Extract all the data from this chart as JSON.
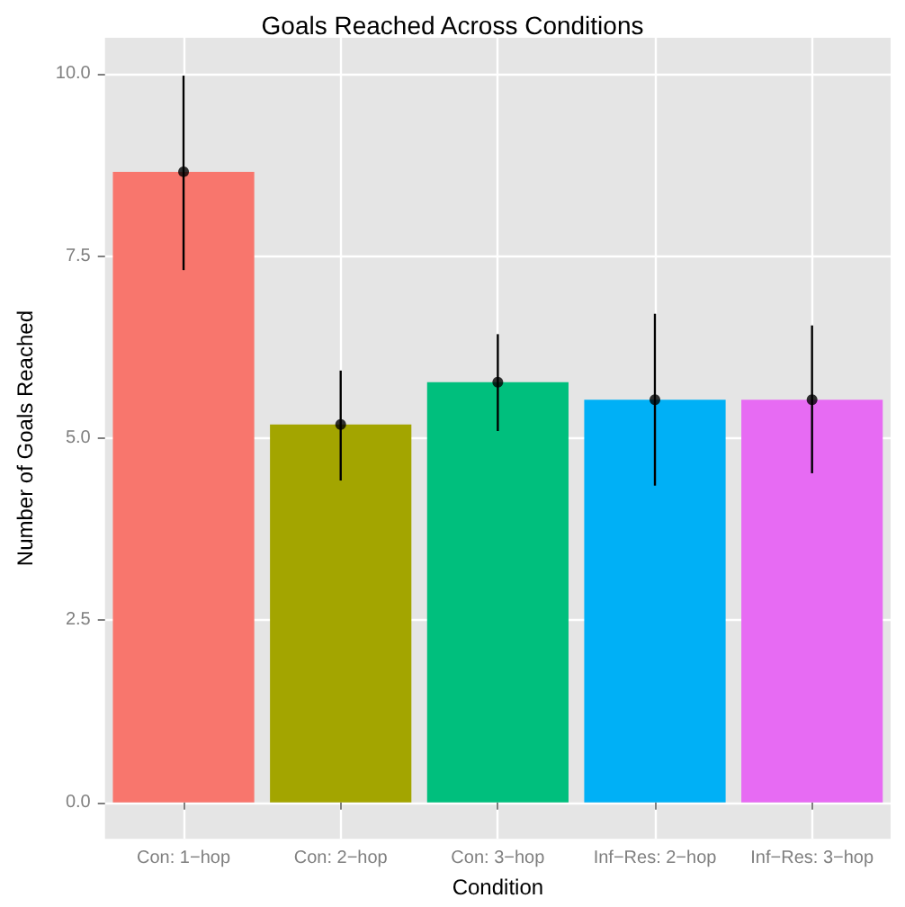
{
  "chart_data": {
    "type": "bar",
    "title": "Goals Reached Across Conditions",
    "xlabel": "Condition",
    "ylabel": "Number of Goals Reached",
    "categories": [
      "Con: 1−hop",
      "Con: 2−hop",
      "Con: 3−hop",
      "Inf−Res: 2−hop",
      "Inf−Res: 3−hop"
    ],
    "values": [
      8.66,
      5.19,
      5.77,
      5.53,
      5.53
    ],
    "colors": [
      "#f8766d",
      "#a3a500",
      "#00bf7d",
      "#00b0f6",
      "#e76bf3"
    ],
    "errors": [
      [
        7.31,
        9.98
      ],
      [
        4.42,
        5.93
      ],
      [
        5.1,
        6.43
      ],
      [
        4.35,
        6.71
      ],
      [
        4.52,
        6.55
      ]
    ],
    "ylim": [
      -0.5,
      10.5
    ],
    "yticks": [
      {
        "value": 0,
        "label": "0.0"
      },
      {
        "value": 2.5,
        "label": "2.5"
      },
      {
        "value": 5,
        "label": "5.0"
      },
      {
        "value": 7.5,
        "label": "7.5"
      },
      {
        "value": 10,
        "label": "10.0"
      }
    ],
    "series": [
      {
        "type": "scatter",
        "x": [
          "Con: 1−hop",
          "Con: 2−hop",
          "Con: 3−hop",
          "Inf−Res: 2−hop",
          "Inf−Res: 3−hop"
        ],
        "values": [
          8.66,
          5.19,
          5.77,
          5.53,
          5.53
        ],
        "color": "#000000"
      }
    ],
    "marker": "circle",
    "grid": true
  }
}
